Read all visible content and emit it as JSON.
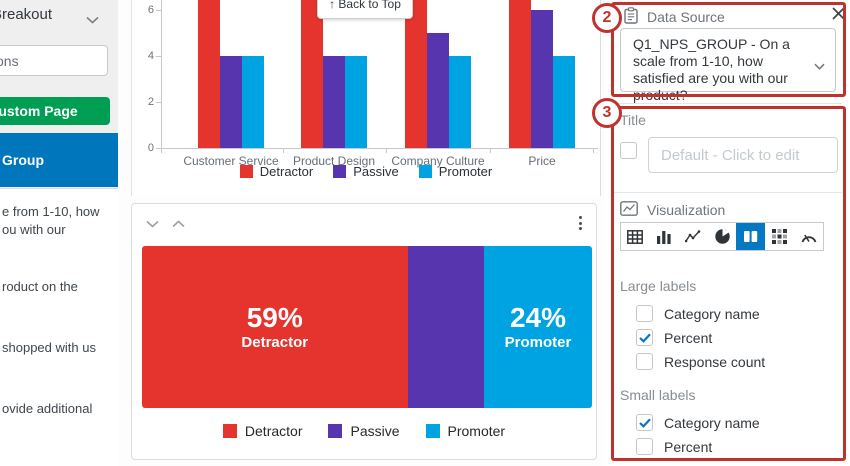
{
  "sidebar": {
    "breakout_label": "Breakout",
    "search_value": "ons",
    "custom_page_button": "ustom Page",
    "selected_group": "Group",
    "question_items": [
      {
        "lines": [
          "e from 1-10, how",
          "ou with our"
        ]
      },
      {
        "lines": [
          "roduct on the"
        ]
      },
      {
        "lines": [
          "shopped with us"
        ]
      },
      {
        "lines": [
          "ovide additional"
        ]
      }
    ]
  },
  "main": {
    "back_to_top_label": "↑ Back to Top"
  },
  "chart_data": [
    {
      "type": "bar",
      "title": "",
      "categories": [
        "Customer Service",
        "Product Design",
        "Company Culture",
        "Price"
      ],
      "series": [
        {
          "name": "Detractor",
          "color": "#e5342e",
          "values": [
            7,
            7,
            7,
            7
          ]
        },
        {
          "name": "Passive",
          "color": "#5735af",
          "values": [
            4,
            4,
            5,
            6
          ]
        },
        {
          "name": "Promoter",
          "color": "#00a3e1",
          "values": [
            4,
            4,
            4,
            4
          ]
        }
      ],
      "ylim": [
        0,
        6.4
      ],
      "yticks": [
        0,
        2,
        4,
        6
      ],
      "grid": false,
      "legend_position": "bottom",
      "note": "Detractor bars are clipped at the top edge of the screenshot (values exceed visible axis)"
    },
    {
      "type": "bar",
      "subtype": "stacked-horizontal-100pct",
      "segments": [
        {
          "name": "Detractor",
          "color": "#e5342e",
          "percent": 59,
          "label": "59%",
          "sublabel": "Detractor"
        },
        {
          "name": "Passive",
          "color": "#5735af",
          "percent": 17,
          "label": "",
          "sublabel": ""
        },
        {
          "name": "Promoter",
          "color": "#00a3e1",
          "percent": 24,
          "label": "24%",
          "sublabel": "Promoter"
        }
      ],
      "legend": [
        "Detractor",
        "Passive",
        "Promoter"
      ],
      "legend_position": "bottom"
    }
  ],
  "right_panel": {
    "data_source": {
      "label": "Data Source",
      "icon": "clipboard-icon",
      "value": "Q1_NPS_GROUP - On a scale from 1-10, how satisfied are you with our product?"
    },
    "title_section": {
      "label": "Title",
      "checkbox_checked": false,
      "placeholder": "Default - Click to edit"
    },
    "visualization": {
      "label": "Visualization",
      "icon": "chart-picture-icon",
      "options": [
        {
          "name": "table",
          "selected": false
        },
        {
          "name": "bar-chart",
          "selected": false
        },
        {
          "name": "line-chart",
          "selected": false
        },
        {
          "name": "pie-chart",
          "selected": false
        },
        {
          "name": "stacked-bar",
          "selected": true
        },
        {
          "name": "matrix",
          "selected": false
        },
        {
          "name": "gauge",
          "selected": false
        }
      ]
    },
    "large_labels": {
      "label": "Large labels",
      "options": [
        {
          "label": "Category name",
          "checked": false
        },
        {
          "label": "Percent",
          "checked": true
        },
        {
          "label": "Response count",
          "checked": false
        }
      ]
    },
    "small_labels": {
      "label": "Small labels",
      "options": [
        {
          "label": "Category name",
          "checked": true
        },
        {
          "label": "Percent",
          "checked": false
        }
      ]
    }
  },
  "annotations": {
    "color": "#c2322d",
    "badge2": "2",
    "badge3": "3"
  },
  "colors": {
    "detractor": "#e5342e",
    "passive": "#5735af",
    "promoter": "#00a3e1",
    "selected_blue": "#0478c2",
    "sidebar_selected": "#0077bc",
    "custom_page_green": "#009e52",
    "check_blue": "#0b76c5"
  }
}
